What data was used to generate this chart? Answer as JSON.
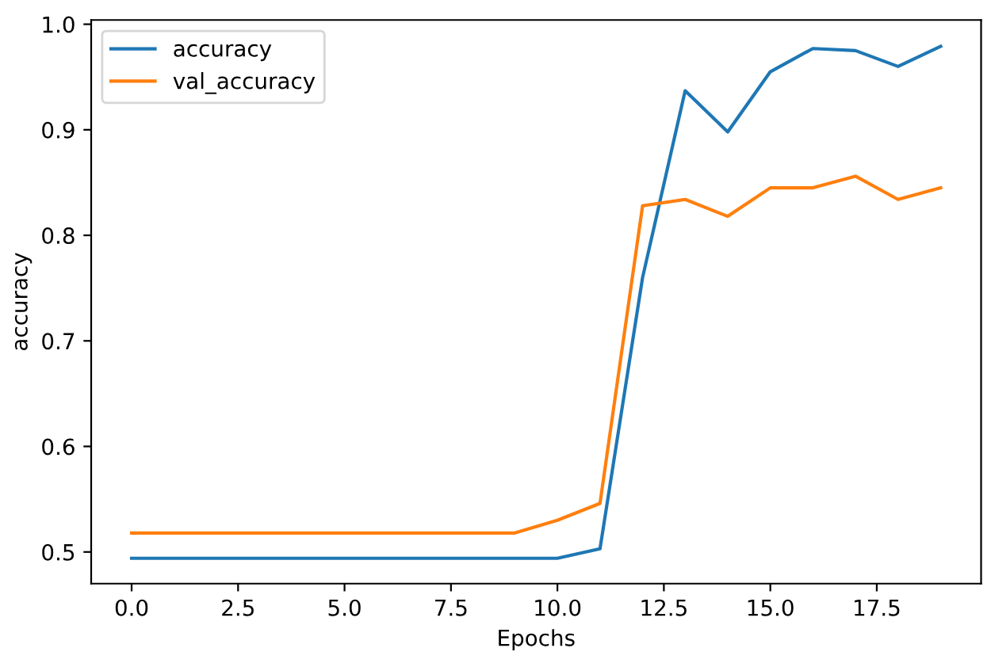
{
  "chart_data": {
    "type": "line",
    "xlabel": "Epochs",
    "ylabel": "accuracy",
    "x": [
      0,
      1,
      2,
      3,
      4,
      5,
      6,
      7,
      8,
      9,
      10,
      11,
      12,
      13,
      14,
      15,
      16,
      17,
      18,
      19
    ],
    "series": [
      {
        "name": "accuracy",
        "color": "#1f77b4",
        "values": [
          0.494,
          0.494,
          0.494,
          0.494,
          0.494,
          0.494,
          0.494,
          0.494,
          0.494,
          0.494,
          0.494,
          0.503,
          0.76,
          0.937,
          0.898,
          0.955,
          0.977,
          0.975,
          0.96,
          0.979
        ]
      },
      {
        "name": "val_accuracy",
        "color": "#ff7f0e",
        "values": [
          0.518,
          0.518,
          0.518,
          0.518,
          0.518,
          0.518,
          0.518,
          0.518,
          0.518,
          0.518,
          0.53,
          0.546,
          0.828,
          0.834,
          0.818,
          0.845,
          0.845,
          0.856,
          0.834,
          0.845
        ]
      }
    ],
    "xlim": [
      -0.95,
      19.95
    ],
    "ylim": [
      0.47,
      1.004
    ],
    "xticks": [
      {
        "value": 0,
        "label": "0.0"
      },
      {
        "value": 2.5,
        "label": "2.5"
      },
      {
        "value": 5,
        "label": "5.0"
      },
      {
        "value": 7.5,
        "label": "7.5"
      },
      {
        "value": 10,
        "label": "10.0"
      },
      {
        "value": 12.5,
        "label": "12.5"
      },
      {
        "value": 15,
        "label": "15.0"
      },
      {
        "value": 17.5,
        "label": "17.5"
      }
    ],
    "yticks": [
      0.5,
      0.6,
      0.7,
      0.8,
      0.9,
      {
        "value": 1.0,
        "label": "1.0"
      }
    ],
    "legend": "top left",
    "grid": false,
    "marker": "none",
    "line_style": "solid"
  }
}
